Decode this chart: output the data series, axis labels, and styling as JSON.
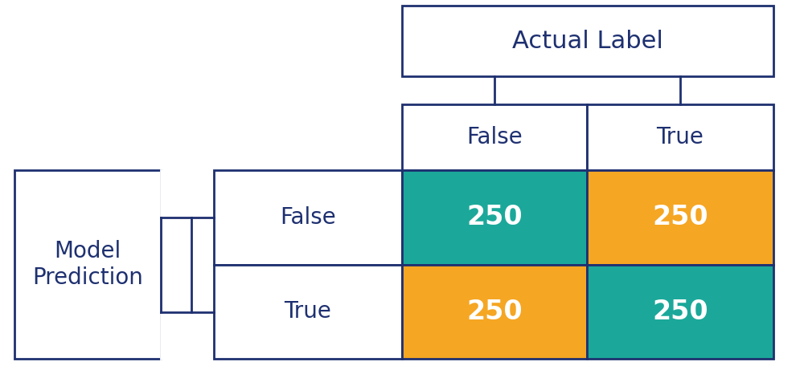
{
  "teal_color": "#1BA89A",
  "orange_color": "#F5A623",
  "dark_blue": "#1E3070",
  "white": "#FFFFFF",
  "bg_color": "#FFFFFF",
  "border_color": "#1E3070",
  "matrix_values": [
    [
      250,
      250
    ],
    [
      250,
      250
    ]
  ],
  "cell_colors": [
    [
      "teal",
      "orange"
    ],
    [
      "orange",
      "teal"
    ]
  ],
  "actual_label": "Actual Label",
  "model_prediction": "Model\nPrediction",
  "col_labels": [
    "False",
    "True"
  ],
  "row_labels": [
    "False",
    "True"
  ],
  "mp_fontsize": 20,
  "label_fontsize": 20,
  "value_fontsize": 24,
  "header_fontsize": 22,
  "lw": 2.0,
  "fig_w": 10.0,
  "fig_h": 4.66
}
